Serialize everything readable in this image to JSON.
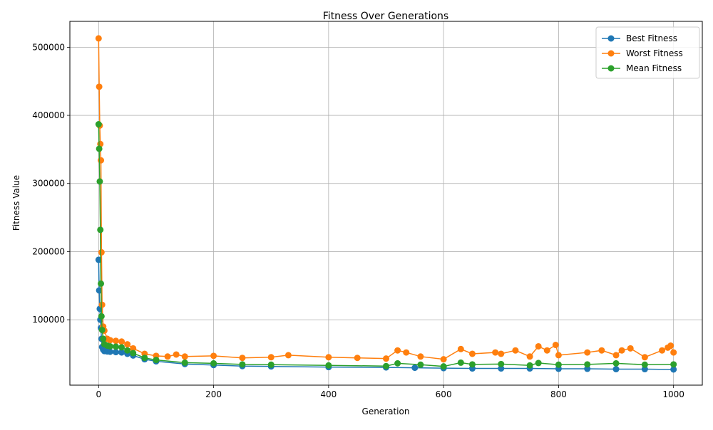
{
  "chart_data": {
    "type": "line",
    "title": "Fitness Over Generations",
    "xlabel": "Generation",
    "ylabel": "Fitness Value",
    "xlim": [
      -50,
      1050
    ],
    "ylim": [
      4000,
      538000
    ],
    "xticks": [
      0,
      200,
      400,
      600,
      800,
      1000
    ],
    "yticks": [
      100000,
      200000,
      300000,
      400000,
      500000
    ],
    "grid": true,
    "legend_position": "top-right",
    "marker": "circle",
    "series": [
      {
        "name": "Best Fitness",
        "color": "#1f77b4",
        "x": [
          0,
          1,
          2,
          3,
          4,
          5,
          6,
          8,
          10,
          15,
          20,
          30,
          40,
          50,
          60,
          80,
          100,
          150,
          200,
          250,
          300,
          400,
          500,
          550,
          600,
          650,
          700,
          750,
          800,
          850,
          900,
          950,
          1000
        ],
        "y": [
          188000,
          143000,
          116000,
          100000,
          88000,
          72000,
          60000,
          56000,
          54000,
          53500,
          53000,
          52500,
          52000,
          50000,
          47500,
          42000,
          39000,
          35000,
          33500,
          32000,
          31500,
          30500,
          30000,
          29500,
          29000,
          28500,
          28500,
          28500,
          28000,
          28000,
          27500,
          27500,
          27000
        ]
      },
      {
        "name": "Worst Fitness",
        "color": "#ff7f0e",
        "x": [
          0,
          1,
          2,
          3,
          4,
          5,
          6,
          8,
          10,
          15,
          20,
          30,
          40,
          50,
          60,
          80,
          100,
          120,
          135,
          150,
          200,
          250,
          300,
          330,
          400,
          450,
          500,
          520,
          535,
          560,
          600,
          630,
          650,
          690,
          700,
          725,
          750,
          765,
          780,
          795,
          800,
          850,
          875,
          900,
          910,
          925,
          950,
          980,
          990,
          995,
          1000
        ],
        "y": [
          513000,
          442000,
          385000,
          358000,
          334000,
          199000,
          122000,
          90000,
          84000,
          72000,
          70000,
          69000,
          68000,
          64000,
          58000,
          50000,
          47000,
          46000,
          49000,
          46000,
          47000,
          44000,
          45000,
          48000,
          45000,
          44000,
          43000,
          55000,
          52000,
          46000,
          42000,
          57000,
          50000,
          52000,
          50000,
          55000,
          46000,
          61000,
          55000,
          63000,
          48000,
          52000,
          55000,
          48000,
          55000,
          58000,
          45000,
          55000,
          59000,
          62000,
          52000
        ]
      },
      {
        "name": "Mean Fitness",
        "color": "#2ca02c",
        "x": [
          0,
          1,
          2,
          3,
          4,
          5,
          6,
          8,
          10,
          15,
          20,
          30,
          40,
          50,
          60,
          80,
          100,
          150,
          200,
          250,
          300,
          400,
          500,
          520,
          560,
          600,
          630,
          650,
          700,
          750,
          765,
          800,
          850,
          900,
          950,
          1000
        ],
        "y": [
          387000,
          351000,
          303000,
          232000,
          153000,
          105000,
          85000,
          72000,
          64000,
          62000,
          61000,
          60500,
          59500,
          55000,
          51000,
          44000,
          41000,
          37000,
          36000,
          34500,
          34000,
          33000,
          32000,
          36000,
          34000,
          31500,
          37000,
          34500,
          35000,
          33000,
          36500,
          34000,
          34500,
          36000,
          34000,
          34500
        ]
      }
    ]
  }
}
